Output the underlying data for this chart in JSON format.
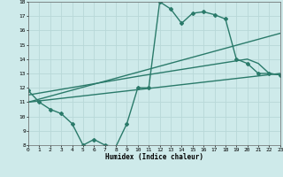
{
  "xlabel": "Humidex (Indice chaleur)",
  "xlim": [
    0,
    23
  ],
  "ylim": [
    8,
    18
  ],
  "xticks": [
    0,
    1,
    2,
    3,
    4,
    5,
    6,
    7,
    8,
    9,
    10,
    11,
    12,
    13,
    14,
    15,
    16,
    17,
    18,
    19,
    20,
    21,
    22,
    23
  ],
  "yticks": [
    8,
    9,
    10,
    11,
    12,
    13,
    14,
    15,
    16,
    17,
    18
  ],
  "bg_color": "#ceeaea",
  "grid_color": "#b8d8d8",
  "line_color": "#2a7a6a",
  "lines": [
    {
      "x": [
        0,
        1,
        2,
        3,
        4,
        5,
        6,
        7,
        8,
        9,
        10,
        11,
        12,
        13,
        14,
        15,
        16,
        17,
        18,
        19,
        20,
        21,
        22,
        23
      ],
      "y": [
        11.8,
        11.0,
        10.5,
        10.2,
        9.5,
        8.0,
        8.4,
        8.0,
        7.9,
        9.5,
        12.0,
        12.0,
        18.0,
        17.5,
        16.5,
        17.2,
        17.3,
        17.1,
        16.8,
        14.0,
        13.7,
        13.0,
        13.0,
        12.9
      ],
      "marker": "D",
      "markersize": 2.0,
      "linewidth": 1.0
    },
    {
      "x": [
        0,
        23
      ],
      "y": [
        11.0,
        13.0
      ],
      "marker": null,
      "linewidth": 1.0
    },
    {
      "x": [
        0,
        23
      ],
      "y": [
        11.0,
        15.8
      ],
      "marker": null,
      "linewidth": 1.0
    },
    {
      "x": [
        0,
        10,
        20,
        21,
        22,
        23
      ],
      "y": [
        11.5,
        12.8,
        14.0,
        13.7,
        13.0,
        12.9
      ],
      "marker": null,
      "linewidth": 1.0
    }
  ]
}
